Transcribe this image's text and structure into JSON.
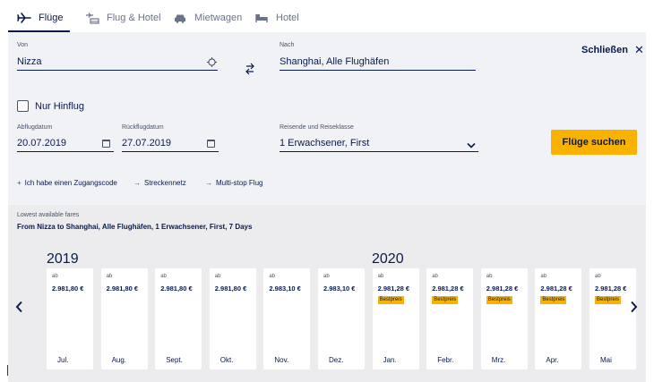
{
  "tabs": [
    {
      "label": "Flüge",
      "icon": "plane-icon",
      "active": true
    },
    {
      "label": "Flug & Hotel",
      "icon": "plane-hotel-icon",
      "active": false
    },
    {
      "label": "Mietwagen",
      "icon": "car-icon",
      "active": false
    },
    {
      "label": "Hotel",
      "icon": "bed-icon",
      "active": false
    }
  ],
  "form": {
    "from_label": "Von",
    "from_value": "Nizza",
    "to_label": "Nach",
    "to_value": "Shanghai, Alle Flughäfen",
    "close_label": "Schließen",
    "oneway_label": "Nur Hinflug",
    "depart_label": "Abflugdatum",
    "depart_value": "20.07.2019",
    "return_label": "Rückflugdatum",
    "return_value": "27.07.2019",
    "travelers_label": "Reisende und Reiseklasse",
    "travelers_value": "1 Erwachsener, First",
    "search_label": "Flüge suchen"
  },
  "links": [
    {
      "prefix": "+",
      "label": "Ich habe einen Zugangscode"
    },
    {
      "prefix": "→",
      "label": "Streckennetz"
    },
    {
      "prefix": "→",
      "label": "Multi-stop Flug"
    }
  ],
  "fares": {
    "title": "Lowest available fares",
    "subtitle": "From Nizza to Shanghai, Alle Flughäfen, 1 Erwachsener, First, 7 Days",
    "year_2019": "2019",
    "year_2020": "2020",
    "months": [
      {
        "ab": "ab",
        "price": "2.981,80 €",
        "badge": "",
        "month": "Jul."
      },
      {
        "ab": "ab",
        "price": "2.981,80 €",
        "badge": "",
        "month": "Aug."
      },
      {
        "ab": "ab",
        "price": "2.981,80 €",
        "badge": "",
        "month": "Sept."
      },
      {
        "ab": "ab",
        "price": "2.981,80 €",
        "badge": "",
        "month": "Okt."
      },
      {
        "ab": "ab",
        "price": "2.983,10 €",
        "badge": "",
        "month": "Nov."
      },
      {
        "ab": "ab",
        "price": "2.983,10 €",
        "badge": "",
        "month": "Dez."
      },
      {
        "ab": "ab",
        "price": "2.981,28 €",
        "badge": "Bestpreis",
        "month": "Jan."
      },
      {
        "ab": "ab",
        "price": "2.981,28 €",
        "badge": "Bestpreis",
        "month": "Febr."
      },
      {
        "ab": "ab",
        "price": "2.981,28 €",
        "badge": "Bestpreis",
        "month": "Mrz."
      },
      {
        "ab": "ab",
        "price": "2.981,28 €",
        "badge": "Bestpreis",
        "month": "Apr."
      },
      {
        "ab": "ab",
        "price": "2.981,28 €",
        "badge": "Bestpreis",
        "month": "Mai"
      }
    ]
  },
  "colors": {
    "navy": "#0a1a4a",
    "accent": "#f9b200",
    "panel": "#f1f2f6",
    "fares_bg": "#ececef"
  }
}
